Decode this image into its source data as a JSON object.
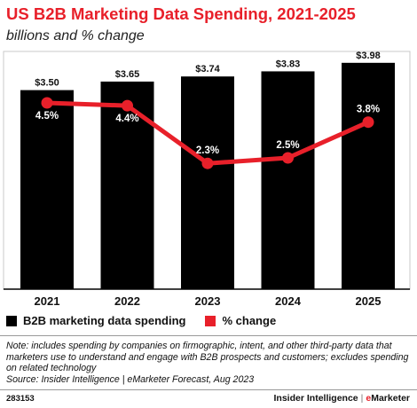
{
  "title": "US B2B Marketing Data Spending, 2021-2025",
  "subtitle": "billions and % change",
  "chart_data": {
    "type": "bar",
    "categories": [
      "2021",
      "2022",
      "2023",
      "2024",
      "2025"
    ],
    "series": [
      {
        "name": "B2B marketing data spending",
        "kind": "bar",
        "color": "#000000",
        "values": [
          3.5,
          3.65,
          3.74,
          3.83,
          3.98
        ],
        "labels": [
          "$3.50",
          "$3.65",
          "$3.74",
          "$3.83",
          "$3.98"
        ]
      },
      {
        "name": "% change",
        "kind": "line",
        "color": "#e8202a",
        "values": [
          4.5,
          4.4,
          2.3,
          2.5,
          3.8
        ],
        "labels": [
          "4.5%",
          "4.4%",
          "2.3%",
          "2.5%",
          "3.8%"
        ]
      }
    ],
    "legend_position": "bottom-left",
    "grid": false
  },
  "legend": {
    "bar_label": "B2B marketing data spending",
    "line_label": "% change"
  },
  "note": "Note: includes spending by companies on firmographic, intent, and other third-party data that marketers use to understand and engage with B2B prospects and customers; excludes spending on related technology",
  "source": "Source: Insider Intelligence | eMarketer Forecast, Aug 2023",
  "footer": {
    "chart_id": "283153",
    "brand_left": "Insider Intelligence",
    "brand_sep": "|",
    "brand_right_accent": "e",
    "brand_right": "Marketer"
  },
  "colors": {
    "accent": "#e8202a",
    "bar": "#000000"
  }
}
